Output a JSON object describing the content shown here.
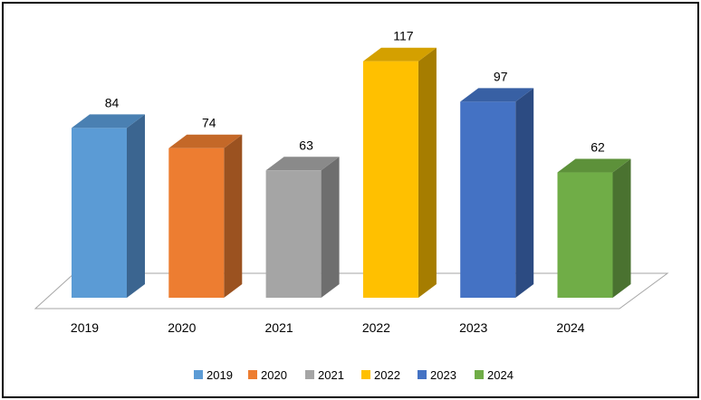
{
  "chart_data": {
    "type": "bar",
    "style": "3d-column",
    "categories": [
      "2019",
      "2020",
      "2021",
      "2022",
      "2023",
      "2024"
    ],
    "values": [
      84,
      74,
      63,
      117,
      97,
      62
    ],
    "title": "",
    "xlabel": "",
    "ylabel": "",
    "ylim": [
      0,
      120
    ],
    "grid": false,
    "legend": {
      "placement": "bottom",
      "entries": [
        "2019",
        "2020",
        "2021",
        "2022",
        "2023",
        "2024"
      ]
    },
    "colors": [
      "#5b9bd5",
      "#ed7d31",
      "#a5a5a5",
      "#ffc000",
      "#4472c4",
      "#70ad47"
    ],
    "side_colors": [
      "#3b6590",
      "#9b5220",
      "#6e6e6e",
      "#a67d00",
      "#2c4b82",
      "#4a7230"
    ],
    "top_colors": [
      "#4a80b2",
      "#c46828",
      "#8a8a8a",
      "#d4a000",
      "#3860a4",
      "#5d913a"
    ]
  }
}
